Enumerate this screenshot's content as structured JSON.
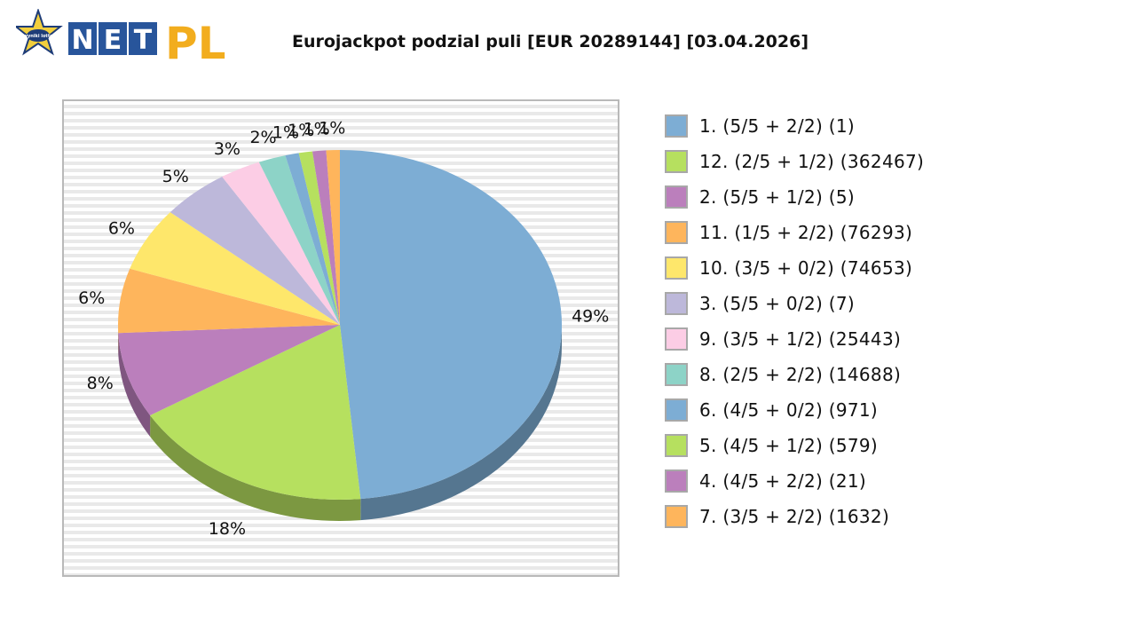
{
  "logo": {
    "brand_net": "NET",
    "brand_pl": "PL",
    "badge_text": "wyniki lotto"
  },
  "chart_data": {
    "type": "pie",
    "title": "Eurojackpot podzial puli [EUR 20289144] [03.04.2026]",
    "legend_position": "right",
    "slices": [
      {
        "label": "1. (5/5 + 2/2) (1)",
        "value": 49,
        "pct_label": "49%",
        "color": "#7dadd4"
      },
      {
        "label": "12. (2/5 + 1/2) (362467)",
        "value": 18,
        "pct_label": "18%",
        "color": "#b6e05f"
      },
      {
        "label": "2. (5/5 + 1/2) (5)",
        "value": 8,
        "pct_label": "8%",
        "color": "#bb7fbc"
      },
      {
        "label": "11. (1/5 + 2/2) (76293)",
        "value": 6,
        "pct_label": "6%",
        "color": "#feb55c"
      },
      {
        "label": "10. (3/5 + 0/2) (74653)",
        "value": 6,
        "pct_label": "6%",
        "color": "#fee76b"
      },
      {
        "label": "3. (5/5 + 0/2) (7)",
        "value": 5,
        "pct_label": "5%",
        "color": "#bdb8da"
      },
      {
        "label": "9. (3/5 + 1/2) (25443)",
        "value": 3,
        "pct_label": "3%",
        "color": "#fccde5"
      },
      {
        "label": "8. (2/5 + 2/2) (14688)",
        "value": 2,
        "pct_label": "2%",
        "color": "#8dd3c7"
      },
      {
        "label": "6. (4/5 + 0/2) (971)",
        "value": 1,
        "pct_label": "1%",
        "color": "#7dadd4"
      },
      {
        "label": "5. (4/5 + 1/2) (579)",
        "value": 1,
        "pct_label": "1%",
        "color": "#b6e05f"
      },
      {
        "label": "4. (4/5 + 2/2) (21)",
        "value": 1,
        "pct_label": "1%",
        "color": "#bb7fbc"
      },
      {
        "label": "7. (3/5 + 2/2) (1632)",
        "value": 1,
        "pct_label": "1%",
        "color": "#feb55c"
      }
    ]
  }
}
